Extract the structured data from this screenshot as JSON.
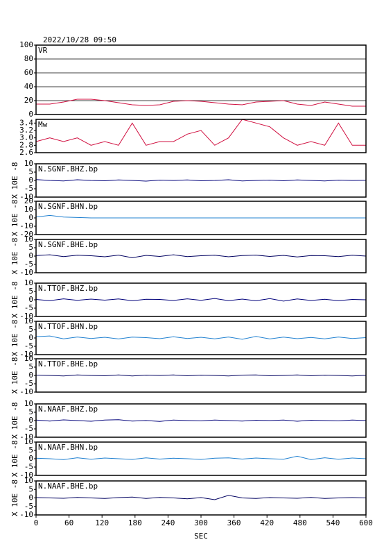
{
  "chart_data": [
    {
      "type": "line",
      "title": "2022/10/28 09:50",
      "label": "VR",
      "color": "#d01040",
      "grid": true,
      "ylim": [
        0,
        100
      ],
      "yticks": [
        0,
        20,
        40,
        60,
        80,
        100
      ],
      "x": [
        0,
        25,
        50,
        75,
        100,
        125,
        150,
        175,
        200,
        225,
        250,
        275,
        300,
        325,
        350,
        375,
        400,
        425,
        450,
        475,
        500,
        525,
        550,
        575,
        600
      ],
      "values": [
        15,
        15,
        18,
        22,
        22,
        20,
        17,
        14,
        13,
        14,
        19,
        20,
        19,
        17,
        15,
        14,
        18,
        19,
        20,
        15,
        13,
        18,
        15,
        12,
        12
      ]
    },
    {
      "type": "line",
      "label": "Mw",
      "color": "#d01040",
      "grid": false,
      "ylim": [
        2.6,
        3.5
      ],
      "yticks": [
        2.6,
        2.8,
        {
          "value": 3,
          "label": "3.0"
        },
        3.2,
        3.4
      ],
      "x": [
        0,
        25,
        50,
        75,
        100,
        125,
        150,
        175,
        200,
        225,
        250,
        275,
        300,
        325,
        350,
        375,
        400,
        425,
        450,
        475,
        500,
        525,
        550,
        575,
        600
      ],
      "values": [
        2.9,
        3.0,
        2.9,
        3.0,
        2.8,
        2.9,
        2.8,
        3.4,
        2.8,
        2.9,
        2.9,
        3.1,
        3.2,
        2.8,
        3.0,
        3.5,
        3.4,
        3.3,
        3.0,
        2.8,
        2.9,
        2.8,
        3.4,
        2.8,
        2.8
      ]
    },
    {
      "type": "line",
      "label": "N.SGNF.BHZ.bp",
      "ylabel": "X 10E -8",
      "color": "#00007a",
      "ylim": [
        -10,
        10
      ],
      "yticks": [
        -10,
        -5,
        0,
        5,
        10
      ],
      "x": [
        0,
        25,
        50,
        75,
        100,
        125,
        150,
        175,
        200,
        225,
        250,
        275,
        300,
        325,
        350,
        375,
        400,
        425,
        450,
        475,
        500,
        525,
        550,
        575,
        600
      ],
      "values": [
        0.5,
        0,
        -0.3,
        0.4,
        0,
        -0.2,
        0.3,
        0,
        -0.4,
        0.2,
        0,
        0.3,
        -0.2,
        0,
        0.4,
        -0.3,
        0,
        0.2,
        -0.2,
        0.3,
        0,
        -0.3,
        0.2,
        0,
        0.1
      ]
    },
    {
      "type": "line",
      "label": "N.SGNF.BHN.bp",
      "ylabel": "X 10E -8",
      "color": "#2080d0",
      "ylim": [
        -20,
        20
      ],
      "yticks": [
        -20,
        -10,
        0,
        10,
        20
      ],
      "x": [
        0,
        25,
        50,
        75,
        100,
        125,
        150,
        175,
        200,
        225,
        250,
        275,
        300,
        325,
        350,
        375,
        400,
        425,
        450,
        475,
        500,
        525,
        550,
        575,
        600
      ],
      "values": [
        1,
        3,
        1,
        0.5,
        0,
        0,
        0,
        0,
        0,
        0,
        0,
        0,
        0,
        0,
        0,
        0,
        0,
        0,
        0,
        0,
        0,
        0,
        0,
        0,
        0
      ]
    },
    {
      "type": "line",
      "label": "N.SGNF.BHE.bp",
      "ylabel": "X 10E -8",
      "color": "#000060",
      "ylim": [
        -10,
        10
      ],
      "yticks": [
        -10,
        -5,
        0,
        5,
        10
      ],
      "x": [
        0,
        25,
        50,
        75,
        100,
        125,
        150,
        175,
        200,
        225,
        250,
        275,
        300,
        325,
        350,
        375,
        400,
        425,
        450,
        475,
        500,
        525,
        550,
        575,
        600
      ],
      "values": [
        0.3,
        0.8,
        -0.3,
        0.5,
        0.2,
        -0.4,
        0.6,
        -1,
        0.4,
        -0.2,
        0.8,
        -0.3,
        0.2,
        0.5,
        -0.4,
        0.3,
        0.6,
        -0.2,
        0.4,
        -0.5,
        0.3,
        0.2,
        -0.3,
        0.5,
        0
      ]
    },
    {
      "type": "line",
      "label": "N.TTOF.BHZ.bp",
      "ylabel": "X 10E -8",
      "color": "#00007a",
      "ylim": [
        -10,
        10
      ],
      "yticks": [
        -10,
        -5,
        0,
        5,
        10
      ],
      "x": [
        0,
        25,
        50,
        75,
        100,
        125,
        150,
        175,
        200,
        225,
        250,
        275,
        300,
        325,
        350,
        375,
        400,
        425,
        450,
        475,
        500,
        525,
        550,
        575,
        600
      ],
      "values": [
        0.2,
        -0.5,
        0.6,
        -0.3,
        0.4,
        -0.2,
        0.5,
        -0.6,
        0.3,
        0.2,
        -0.4,
        0.6,
        -0.3,
        0.8,
        -0.5,
        0.4,
        -0.6,
        0.7,
        -0.8,
        0.5,
        -0.4,
        0.3,
        -0.5,
        0.2,
        0
      ]
    },
    {
      "type": "line",
      "label": "N.TTOF.BHN.bp",
      "ylabel": "X 10E -8",
      "color": "#2080d0",
      "ylim": [
        -10,
        10
      ],
      "yticks": [
        -10,
        -5,
        0,
        5,
        10
      ],
      "x": [
        0,
        25,
        50,
        75,
        100,
        125,
        150,
        175,
        200,
        225,
        250,
        275,
        300,
        325,
        350,
        375,
        400,
        425,
        450,
        475,
        500,
        525,
        550,
        575,
        600
      ],
      "values": [
        0.8,
        1.2,
        -0.5,
        0.6,
        -0.3,
        0.4,
        -0.6,
        0.5,
        0.2,
        -0.4,
        0.7,
        -0.3,
        0.4,
        -0.5,
        0.6,
        -0.8,
        0.9,
        -0.6,
        0.5,
        -0.4,
        0.3,
        -0.5,
        0.6,
        -0.3,
        0.2
      ]
    },
    {
      "type": "line",
      "label": "N.TTOF.BHE.bp",
      "ylabel": "X 10E -8",
      "color": "#000060",
      "ylim": [
        -10,
        10
      ],
      "yticks": [
        -10,
        -5,
        0,
        5,
        10
      ],
      "x": [
        0,
        25,
        50,
        75,
        100,
        125,
        150,
        175,
        200,
        225,
        250,
        275,
        300,
        325,
        350,
        375,
        400,
        425,
        450,
        475,
        500,
        525,
        550,
        575,
        600
      ],
      "values": [
        0.2,
        0,
        -0.3,
        0.3,
        0,
        -0.2,
        0.3,
        -0.3,
        0.2,
        0,
        0.3,
        -0.2,
        0.2,
        0,
        -0.3,
        0.2,
        0.3,
        -0.2,
        0,
        0.3,
        -0.2,
        0.2,
        0,
        -0.3,
        0.1
      ]
    },
    {
      "type": "line",
      "label": "N.NAAF.BHZ.bp",
      "ylabel": "X 10E -8",
      "color": "#00007a",
      "ylim": [
        -10,
        10
      ],
      "yticks": [
        -10,
        -5,
        0,
        5,
        10
      ],
      "x": [
        0,
        25,
        50,
        75,
        100,
        125,
        150,
        175,
        200,
        225,
        250,
        275,
        300,
        325,
        350,
        375,
        400,
        425,
        450,
        475,
        500,
        525,
        550,
        575,
        600
      ],
      "values": [
        0.3,
        -0.3,
        0.4,
        0,
        -0.4,
        0.3,
        0.5,
        -0.3,
        0,
        -0.5,
        0.3,
        0,
        -0.2,
        0.3,
        0,
        -0.3,
        0.2,
        0,
        0.3,
        -0.4,
        0.2,
        0,
        -0.2,
        0.3,
        0
      ]
    },
    {
      "type": "line",
      "label": "N.NAAF.BHN.bp",
      "ylabel": "X 10E -8",
      "color": "#2080d0",
      "ylim": [
        -10,
        10
      ],
      "yticks": [
        -10,
        -5,
        0,
        5,
        10
      ],
      "x": [
        0,
        25,
        50,
        75,
        100,
        125,
        150,
        175,
        200,
        225,
        250,
        275,
        300,
        325,
        350,
        375,
        400,
        425,
        450,
        475,
        500,
        525,
        550,
        575,
        600
      ],
      "values": [
        0.3,
        0,
        -0.5,
        0.6,
        -0.3,
        0.4,
        0,
        -0.4,
        0.5,
        -0.2,
        0.3,
        0,
        -0.4,
        0.3,
        0.5,
        -0.2,
        0.4,
        0,
        -0.3,
        1.5,
        -0.5,
        0.6,
        -0.3,
        0.4,
        0
      ]
    },
    {
      "type": "line",
      "label": "N.NAAF.BHE.bp",
      "ylabel": "X 10E -8",
      "color": "#000060",
      "xlabel": "SEC",
      "ylim": [
        -10,
        10
      ],
      "yticks": [
        -10,
        -5,
        0,
        5,
        10
      ],
      "xlim": [
        0,
        600
      ],
      "xticks": [
        0,
        60,
        120,
        180,
        240,
        300,
        360,
        420,
        480,
        540,
        600
      ],
      "x": [
        0,
        25,
        50,
        75,
        100,
        125,
        150,
        175,
        200,
        225,
        250,
        275,
        300,
        325,
        350,
        375,
        400,
        425,
        450,
        475,
        500,
        525,
        550,
        575,
        600
      ],
      "values": [
        0.2,
        0,
        -0.2,
        0.3,
        0,
        -0.3,
        0.2,
        0.5,
        -0.3,
        0.3,
        0,
        -0.5,
        0.2,
        -1,
        1.5,
        0,
        -0.3,
        0.2,
        0,
        -0.2,
        0.3,
        -0.3,
        0,
        0.2,
        0
      ]
    }
  ]
}
